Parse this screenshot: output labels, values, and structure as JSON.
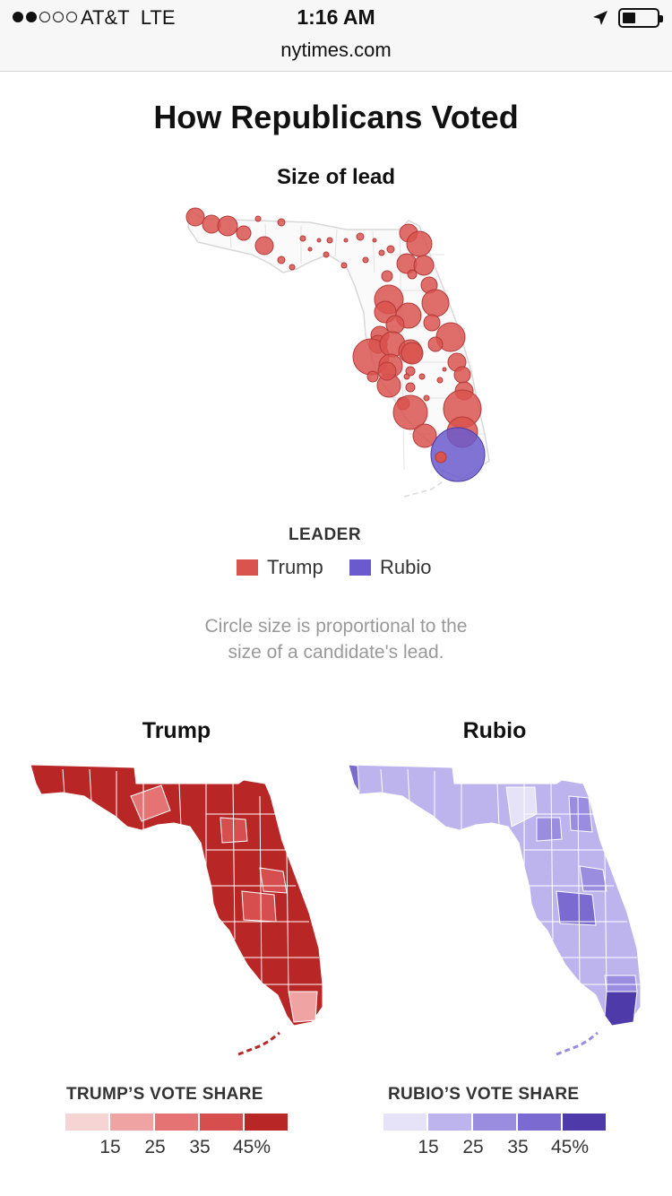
{
  "status_bar": {
    "carrier": "AT&T",
    "network": "LTE",
    "time": "1:16 AM",
    "signal_bars_filled": 2,
    "signal_bars_total": 5,
    "battery_level": 0.3
  },
  "browser": {
    "url": "nytimes.com"
  },
  "article": {
    "title": "How Republicans Voted",
    "bubble_map": {
      "title": "Size of lead",
      "legend_title": "LEADER",
      "legend": [
        {
          "label": "Trump",
          "color": "#d9534f"
        },
        {
          "label": "Rubio",
          "color": "#6a5acd"
        }
      ],
      "note_line1": "Circle size is proportional to the",
      "note_line2": "size of a candidate's lead."
    },
    "trump_map": {
      "title": "Trump",
      "scale_title": "TRUMP’S VOTE SHARE",
      "colors": [
        "#f7d4d4",
        "#f0a3a3",
        "#e57373",
        "#d64e4e",
        "#b82626"
      ],
      "ticks": [
        "15",
        "25",
        "35",
        "45%"
      ]
    },
    "rubio_map": {
      "title": "Rubio",
      "scale_title": "RUBIO’S VOTE SHARE",
      "colors": [
        "#e6e2f8",
        "#bdb4ee",
        "#9a8de0",
        "#7b6ad0",
        "#4e3aa8"
      ],
      "ticks": [
        "15",
        "25",
        "35",
        "45%"
      ]
    }
  }
}
